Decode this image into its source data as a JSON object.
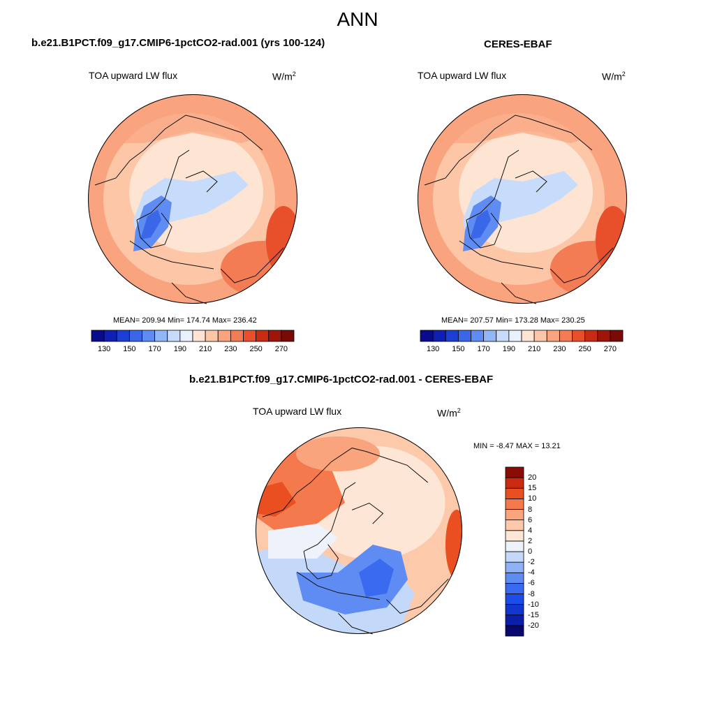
{
  "page_title": "ANN",
  "chart_data": [
    {
      "type": "heatmap",
      "title": "b.e21.B1PCT.f09_g17.CMIP6-1pctCO2-rad.001 (yrs 100-124)",
      "subtitle": "TOA upward LW flux",
      "units_base": "W/m",
      "units_exp": "2",
      "projection": "north-polar-stereographic",
      "stats_text": "MEAN= 209.94  Min= 174.74  Max= 236.42",
      "mean": 209.94,
      "min": 174.74,
      "max": 236.42,
      "colorbar": {
        "orientation": "horizontal",
        "levels": [
          130,
          140,
          150,
          160,
          170,
          180,
          190,
          200,
          210,
          220,
          230,
          240,
          250,
          260,
          270
        ],
        "tick_labels": [
          "130",
          "150",
          "170",
          "190",
          "210",
          "230",
          "250",
          "270"
        ],
        "colors": [
          "#0a0a8c",
          "#0f1fb4",
          "#1c3ed2",
          "#3a67e8",
          "#5f8cf2",
          "#93b6f7",
          "#c6dcfa",
          "#eaf1fc",
          "#fde4d3",
          "#fcc6a7",
          "#f9a47f",
          "#f47c55",
          "#e8502b",
          "#c92a12",
          "#a0150a",
          "#7a0a05"
        ]
      }
    },
    {
      "type": "heatmap",
      "title": "CERES-EBAF",
      "subtitle": "TOA upward LW flux",
      "units_base": "W/m",
      "units_exp": "2",
      "projection": "north-polar-stereographic",
      "stats_text": "MEAN= 207.57  Min= 173.28  Max= 230.25",
      "mean": 207.57,
      "min": 173.28,
      "max": 230.25,
      "colorbar": {
        "orientation": "horizontal",
        "levels": [
          130,
          140,
          150,
          160,
          170,
          180,
          190,
          200,
          210,
          220,
          230,
          240,
          250,
          260,
          270
        ],
        "tick_labels": [
          "130",
          "150",
          "170",
          "190",
          "210",
          "230",
          "250",
          "270"
        ],
        "colors": [
          "#0a0a8c",
          "#0f1fb4",
          "#1c3ed2",
          "#3a67e8",
          "#5f8cf2",
          "#93b6f7",
          "#c6dcfa",
          "#eaf1fc",
          "#fde4d3",
          "#fcc6a7",
          "#f9a47f",
          "#f47c55",
          "#e8502b",
          "#c92a12",
          "#a0150a",
          "#7a0a05"
        ]
      }
    },
    {
      "type": "heatmap",
      "title": "b.e21.B1PCT.f09_g17.CMIP6-1pctCO2-rad.001 - CERES-EBAF",
      "subtitle": "TOA upward LW flux",
      "units_base": "W/m",
      "units_exp": "2",
      "projection": "north-polar-stereographic",
      "stats_text": "MIN =  -8.47 MAX =  13.21",
      "min": -8.47,
      "max": 13.21,
      "colorbar": {
        "orientation": "vertical",
        "levels": [
          -20,
          -15,
          -10,
          -8,
          -6,
          -4,
          -2,
          0,
          2,
          4,
          6,
          8,
          10,
          15,
          20
        ],
        "tick_labels": [
          "-20",
          "-15",
          "-10",
          "-8",
          "-6",
          "-4",
          "-2",
          "0",
          "2",
          "4",
          "6",
          "8",
          "10",
          "15",
          "20"
        ],
        "colors": [
          "#08086e",
          "#0c1fa8",
          "#1236cf",
          "#1d4de8",
          "#3a6af0",
          "#5f8cf2",
          "#8fb1f6",
          "#c4d9fa",
          "#eef3fb",
          "#fde6d6",
          "#fcc9aa",
          "#f9a47c",
          "#f47a4e",
          "#ea4f22",
          "#c92a10",
          "#8a0d05"
        ]
      }
    }
  ]
}
